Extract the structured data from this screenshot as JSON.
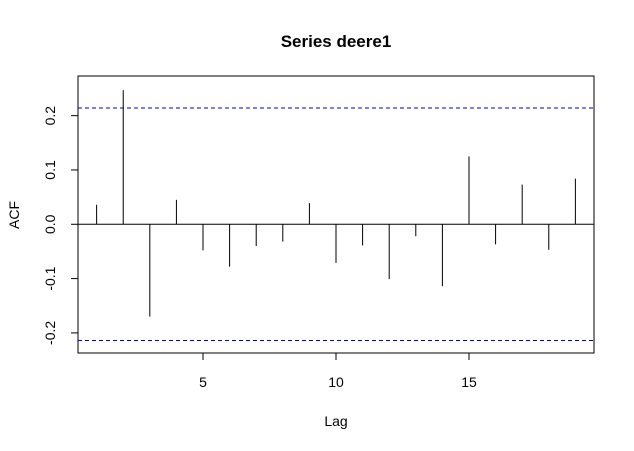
{
  "chart_data": {
    "type": "bar",
    "title": "Series deere1",
    "xlabel": "Lag",
    "ylabel": "ACF",
    "xlim": [
      0.3,
      19.7
    ],
    "ylim": [
      -0.237,
      0.273
    ],
    "x_ticks": [
      5,
      10,
      15
    ],
    "x_tick_labels": [
      "5",
      "10",
      "15"
    ],
    "y_ticks": [
      -0.2,
      -0.1,
      0.0,
      0.1,
      0.2
    ],
    "y_tick_labels": [
      "-0.2",
      "-0.1",
      "0.0",
      "0.1",
      "0.2"
    ],
    "lags": [
      1,
      2,
      3,
      4,
      5,
      6,
      7,
      8,
      9,
      10,
      11,
      12,
      13,
      14,
      15,
      16,
      17,
      18,
      19
    ],
    "values": [
      0.036,
      0.247,
      -0.17,
      0.045,
      -0.048,
      -0.078,
      -0.04,
      -0.032,
      0.039,
      -0.071,
      -0.039,
      -0.101,
      -0.022,
      -0.114,
      0.125,
      -0.037,
      0.073,
      -0.047,
      0.084
    ],
    "confidence_limits": [
      0.214,
      -0.214
    ],
    "confidence_line_color": "#0000cc",
    "grid": false,
    "legend": "none"
  }
}
